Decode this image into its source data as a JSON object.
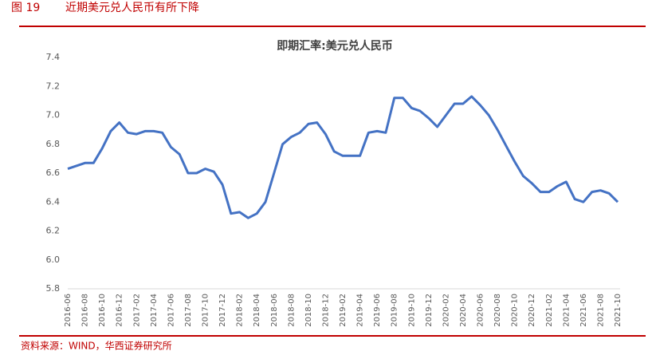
{
  "header": {
    "figure_label": "图 19",
    "caption": "近期美元兑人民币有所下降"
  },
  "chart_data": {
    "type": "line",
    "title": "即期汇率:美元兑人民币",
    "x": [
      "2016-06",
      "2016-07",
      "2016-08",
      "2016-09",
      "2016-10",
      "2016-11",
      "2016-12",
      "2017-01",
      "2017-02",
      "2017-03",
      "2017-04",
      "2017-05",
      "2017-06",
      "2017-07",
      "2017-08",
      "2017-09",
      "2017-10",
      "2017-11",
      "2017-12",
      "2018-01",
      "2018-02",
      "2018-03",
      "2018-04",
      "2018-05",
      "2018-06",
      "2018-07",
      "2018-08",
      "2018-09",
      "2018-10",
      "2018-11",
      "2018-12",
      "2019-01",
      "2019-02",
      "2019-03",
      "2019-04",
      "2019-05",
      "2019-06",
      "2019-07",
      "2019-08",
      "2019-09",
      "2019-10",
      "2019-11",
      "2019-12",
      "2020-01",
      "2020-02",
      "2020-03",
      "2020-04",
      "2020-05",
      "2020-06",
      "2020-07",
      "2020-08",
      "2020-09",
      "2020-10",
      "2020-11",
      "2020-12",
      "2021-01",
      "2021-02",
      "2021-03",
      "2021-04",
      "2021-05",
      "2021-06",
      "2021-07",
      "2021-08",
      "2021-09",
      "2021-10"
    ],
    "series": [
      {
        "name": "即期汇率:美元兑人民币",
        "color": "#4472c4",
        "values": [
          6.63,
          6.65,
          6.67,
          6.67,
          6.77,
          6.89,
          6.95,
          6.88,
          6.87,
          6.89,
          6.89,
          6.88,
          6.78,
          6.73,
          6.6,
          6.6,
          6.63,
          6.61,
          6.52,
          6.32,
          6.33,
          6.29,
          6.32,
          6.4,
          6.6,
          6.8,
          6.85,
          6.88,
          6.94,
          6.95,
          6.87,
          6.75,
          6.72,
          6.72,
          6.72,
          6.88,
          6.89,
          6.88,
          7.12,
          7.12,
          7.05,
          7.03,
          6.98,
          6.92,
          7.0,
          7.08,
          7.08,
          7.13,
          7.07,
          7.0,
          6.9,
          6.79,
          6.68,
          6.58,
          6.53,
          6.47,
          6.47,
          6.51,
          6.54,
          6.42,
          6.4,
          6.47,
          6.48,
          6.46,
          6.4
        ]
      }
    ],
    "xticks": [
      "2016-06",
      "2016-08",
      "2016-10",
      "2016-12",
      "2017-02",
      "2017-04",
      "2017-06",
      "2017-08",
      "2017-10",
      "2017-12",
      "2018-02",
      "2018-04",
      "2018-06",
      "2018-08",
      "2018-10",
      "2018-12",
      "2019-02",
      "2019-04",
      "2019-06",
      "2019-08",
      "2019-10",
      "2019-12",
      "2020-02",
      "2020-04",
      "2020-06",
      "2020-08",
      "2020-10",
      "2020-12",
      "2021-02",
      "2021-04",
      "2021-06",
      "2021-08",
      "2021-10"
    ],
    "ylim": [
      5.8,
      7.4
    ],
    "yticks": [
      5.8,
      {
        "value": 6,
        "label": "6.0"
      },
      6.2,
      6.4,
      6.6,
      6.8,
      {
        "value": 7,
        "label": "7.0"
      },
      7.2,
      7.4
    ],
    "grid": false
  },
  "source": "资料来源：WIND，华西证券研究所"
}
